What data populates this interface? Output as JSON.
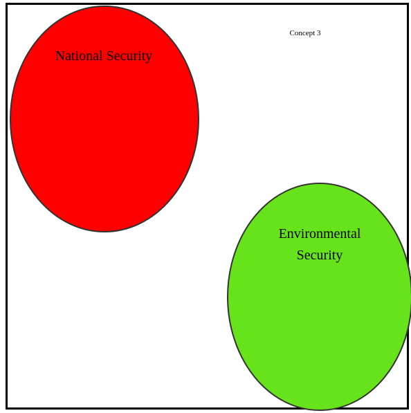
{
  "diagram": {
    "title": "Concept 3",
    "nodes": [
      {
        "id": "national-security",
        "label_lines": [
          "National Security"
        ],
        "fill": "#fe0000"
      },
      {
        "id": "environmental-security",
        "label_lines": [
          "Environmental",
          "Security"
        ],
        "fill": "#66e31b"
      }
    ],
    "outline_color": "#333333",
    "border_color": "#000000"
  }
}
